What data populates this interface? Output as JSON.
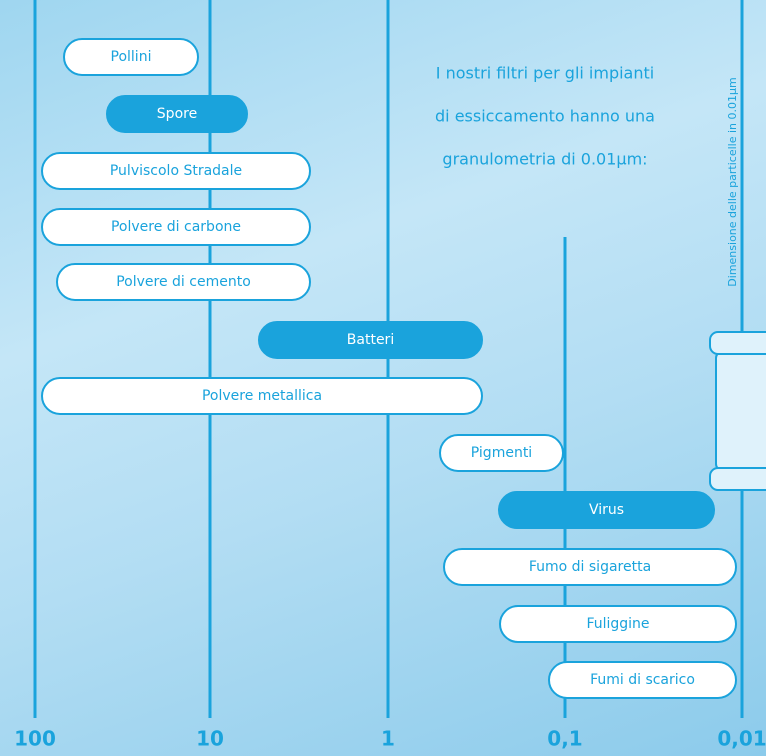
{
  "scale_labels": [
    "100",
    "10",
    "1",
    "0,1",
    "0,01"
  ],
  "intro": [
    "I nostri filtri per gli impianti",
    "di essiccamento hanno una",
    "granulometria di 0.01µm:"
  ],
  "axis_caption": "Dimensione delle particelle in 0.01µm",
  "items": [
    "Pollini",
    "Spore",
    "Pulviscolo Stradale",
    "Polvere di carbone",
    "Polvere di cemento",
    "Batteri",
    "Polvere metallica",
    "Pigmenti",
    "Virus",
    "Fumo di sigaretta",
    "Fuliggine",
    "Fumi di scarico"
  ]
}
